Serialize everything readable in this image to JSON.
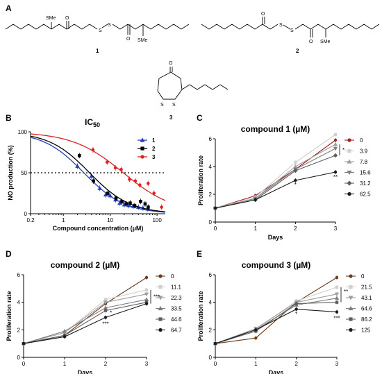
{
  "panels": {
    "A": "A",
    "B": "B",
    "C": "C",
    "D": "D",
    "E": "E"
  },
  "structures": {
    "atom_SMe": "SMe",
    "atom_O": "O",
    "atom_S": "S",
    "compound_labels": [
      "1",
      "2",
      "3"
    ]
  },
  "chart_data": [
    {
      "panel": "B",
      "type": "scatter",
      "title": "IC50",
      "xlabel": "Compound concentration (µM)",
      "ylabel": "NO production (%)",
      "xscale": "log",
      "xlim": [
        0.2,
        150
      ],
      "ylim": [
        0,
        100
      ],
      "xticks": [
        "0.2",
        "1",
        "10",
        "100"
      ],
      "yticks": [
        "0",
        "50",
        "100"
      ],
      "reference_line": 50,
      "legend_position": "top-right",
      "series": [
        {
          "name": "1",
          "color": "#1f3fbf",
          "marker": "triangle",
          "x": [
            2,
            4,
            6,
            8,
            10,
            13,
            16,
            20,
            25,
            31,
            40,
            50,
            62.5
          ],
          "y": [
            58,
            46,
            31,
            23,
            22,
            17,
            13,
            11,
            10,
            9,
            8,
            7,
            6
          ]
        },
        {
          "name": "2",
          "color": "#000000",
          "marker": "square",
          "x": [
            2.2,
            4.4,
            8.9,
            13.3,
            17.8,
            22.2,
            26.7,
            33.3,
            44.5,
            55.6,
            64.7
          ],
          "y": [
            71,
            40,
            25,
            19,
            15,
            12,
            13,
            10,
            15,
            12,
            8
          ]
        },
        {
          "name": "3",
          "color": "#e02020",
          "marker": "circle",
          "x": [
            4.3,
            8.6,
            12.9,
            17.2,
            25.8,
            34.4,
            43,
            64.5,
            86,
            125
          ],
          "y": [
            78,
            63,
            56,
            54,
            42,
            40,
            35,
            37,
            25,
            8
          ]
        }
      ]
    },
    {
      "panel": "C",
      "type": "line",
      "title": "compound 1 (µM)",
      "xlabel": "Days",
      "ylabel": "Proliferation rate",
      "xlim": [
        0,
        3
      ],
      "ylim": [
        0,
        6
      ],
      "x": [
        0,
        1,
        2,
        3
      ],
      "series": [
        {
          "name": "0",
          "color": "#a32020",
          "marker": "circle",
          "values": [
            1,
            1.9,
            3.8,
            5.9
          ]
        },
        {
          "name": "3.9",
          "color": "#cfcfcf",
          "marker": "square",
          "values": [
            1,
            1.8,
            4.3,
            6.3
          ]
        },
        {
          "name": "7.8",
          "color": "#9f9f9f",
          "marker": "triangle",
          "values": [
            1,
            1.7,
            4.0,
            5.6
          ]
        },
        {
          "name": "15.6",
          "color": "#7f7f7f",
          "marker": "triangle-down",
          "values": [
            1,
            1.7,
            3.8,
            5.3
          ]
        },
        {
          "name": "31.2",
          "color": "#5f5f5f",
          "marker": "diamond",
          "values": [
            1,
            1.6,
            3.7,
            4.8
          ]
        },
        {
          "name": "62.5",
          "color": "#1a1a1a",
          "marker": "circle",
          "values": [
            1,
            1.6,
            3.0,
            3.6
          ]
        }
      ],
      "annotations": [
        "*",
        "*",
        "**"
      ]
    },
    {
      "panel": "D",
      "type": "line",
      "title": "compound 2 (µM)",
      "xlabel": "Days",
      "ylabel": "Proliferation rate",
      "xlim": [
        0,
        3
      ],
      "ylim": [
        0,
        6
      ],
      "x": [
        0,
        1,
        2,
        3
      ],
      "series": [
        {
          "name": "0",
          "color": "#6b3a1a",
          "marker": "circle",
          "values": [
            1,
            1.6,
            3.9,
            5.8
          ]
        },
        {
          "name": "11.1",
          "color": "#cfcfcf",
          "marker": "square",
          "values": [
            1,
            1.8,
            4.2,
            4.9
          ]
        },
        {
          "name": "22.3",
          "color": "#9f9f9f",
          "marker": "triangle-down",
          "values": [
            1,
            1.8,
            4.0,
            4.6
          ]
        },
        {
          "name": "33.5",
          "color": "#7f7f7f",
          "marker": "triangle",
          "values": [
            1,
            1.9,
            3.6,
            4.2
          ]
        },
        {
          "name": "44.6",
          "color": "#5f5f5f",
          "marker": "square",
          "values": [
            1,
            1.6,
            3.4,
            4.0
          ]
        },
        {
          "name": "64.7",
          "color": "#1a1a1a",
          "marker": "circle",
          "values": [
            1,
            1.5,
            2.9,
            3.9
          ]
        }
      ],
      "annotations": [
        "*",
        "***",
        "***"
      ]
    },
    {
      "panel": "E",
      "type": "line",
      "title": "compound 3 (µM)",
      "xlabel": "Days",
      "ylabel": "Proliferation rate",
      "xlim": [
        0,
        3
      ],
      "ylim": [
        0,
        6
      ],
      "x": [
        0,
        1,
        2,
        3
      ],
      "series": [
        {
          "name": "0",
          "color": "#6b3a1a",
          "marker": "circle",
          "values": [
            1,
            1.4,
            4.0,
            5.8
          ]
        },
        {
          "name": "21.5",
          "color": "#cfcfcf",
          "marker": "square",
          "values": [
            1,
            2.0,
            4.1,
            5.1
          ]
        },
        {
          "name": "43.1",
          "color": "#9f9f9f",
          "marker": "triangle-down",
          "values": [
            1,
            2.1,
            4.0,
            4.6
          ]
        },
        {
          "name": "64.6",
          "color": "#7f7f7f",
          "marker": "triangle",
          "values": [
            1,
            2.0,
            3.8,
            4.3
          ]
        },
        {
          "name": "86.2",
          "color": "#5f5f5f",
          "marker": "square",
          "values": [
            1,
            1.9,
            3.9,
            4.0
          ]
        },
        {
          "name": "125",
          "color": "#1a1a1a",
          "marker": "circle",
          "values": [
            1,
            2.0,
            3.5,
            3.3
          ]
        }
      ],
      "annotations": [
        "*",
        "**",
        "***"
      ]
    }
  ]
}
